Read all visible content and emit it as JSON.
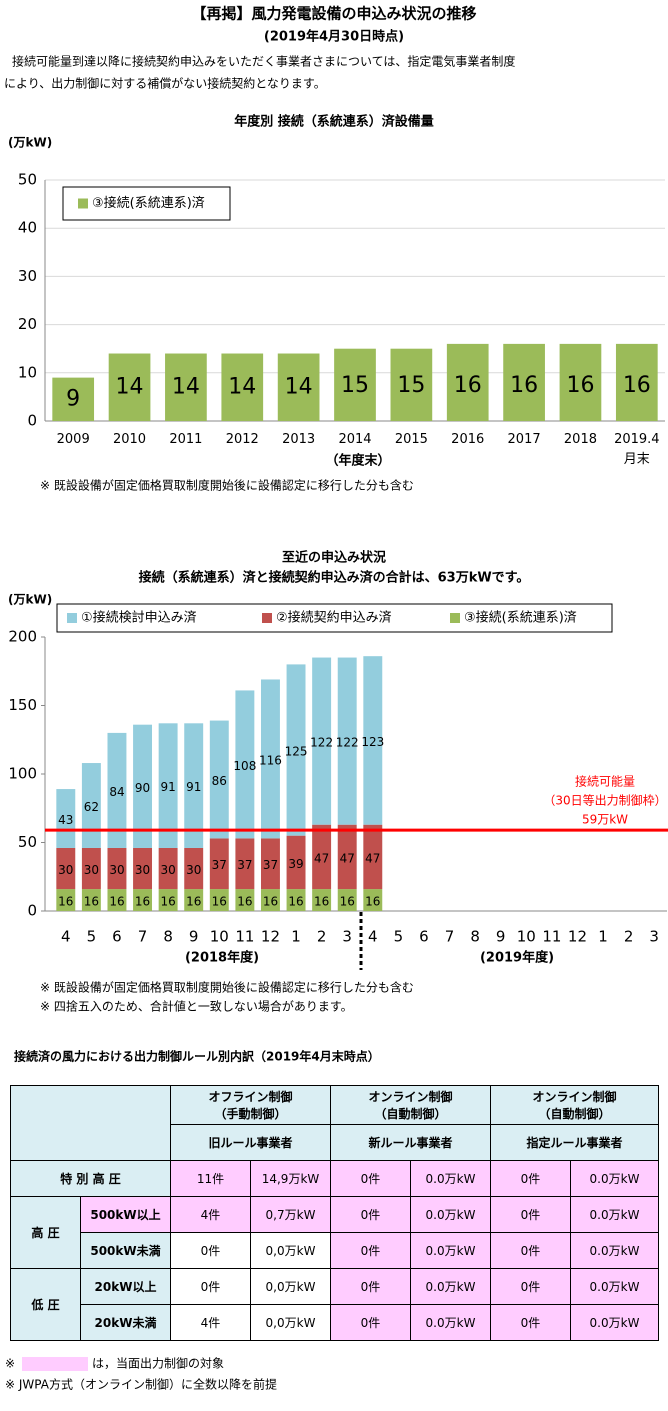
{
  "header": {
    "title": "【再掲】風力発電設備の申込み状況の推移",
    "date": "(2019年4月30日時点)",
    "note": [
      "接続可能量到達以降に接続契約申込みをいただく事業者さまについては、指定電気事業者制度",
      "により、出力制御に対する補償がない接続契約となります。"
    ]
  },
  "chart_data": [
    {
      "type": "bar",
      "title": "年度別  接続（系統連系）済設備量",
      "y_unit": "(万kW)",
      "x_label": "（年度末）",
      "categories": [
        "2009",
        "2010",
        "2011",
        "2012",
        "2013",
        "2014",
        "2015",
        "2016",
        "2017",
        "2018",
        "2019.4月末"
      ],
      "series": [
        {
          "name": "③接続(系統連系)済",
          "color": "#9bbb59",
          "values": [
            9,
            14,
            14,
            14,
            14,
            15,
            15,
            16,
            16,
            16,
            16
          ]
        }
      ],
      "ylim": [
        0,
        50
      ],
      "yticks": [
        0,
        10,
        20,
        30,
        40,
        50
      ],
      "grid": true,
      "legend": "top-left",
      "footnotes": [
        "※ 既設設備が固定価格買取制度開始後に設備認定に移行した分も含む"
      ]
    },
    {
      "type": "stacked_bar",
      "title": [
        "至近の申込み状況",
        "接続（系統連系）済と接続契約申込み済の合計は、63万kWです。"
      ],
      "y_unit": "(万kW)",
      "categories": [
        "4",
        "5",
        "6",
        "7",
        "8",
        "9",
        "10",
        "11",
        "12",
        "1",
        "2",
        "3",
        "4",
        "5",
        "6",
        "7",
        "8",
        "9",
        "10",
        "11",
        "12",
        "1",
        "2",
        "3"
      ],
      "category_groups": [
        "(2018年度)",
        "(2019年度)"
      ],
      "series": [
        {
          "name": "①接続検討申込み済",
          "color": "#93cddd",
          "values": [
            43,
            62,
            84,
            90,
            91,
            91,
            86,
            108,
            116,
            125,
            122,
            122,
            123,
            null,
            null,
            null,
            null,
            null,
            null,
            null,
            null,
            null,
            null,
            null
          ]
        },
        {
          "name": "②接続契約申込み済",
          "color": "#c0504d",
          "values": [
            30,
            30,
            30,
            30,
            30,
            30,
            37,
            37,
            37,
            39,
            47,
            47,
            47,
            null,
            null,
            null,
            null,
            null,
            null,
            null,
            null,
            null,
            null,
            null
          ]
        },
        {
          "name": "③接続(系統連系)済",
          "color": "#9bbb59",
          "values": [
            16,
            16,
            16,
            16,
            16,
            16,
            16,
            16,
            16,
            16,
            16,
            16,
            16,
            null,
            null,
            null,
            null,
            null,
            null,
            null,
            null,
            null,
            null,
            null
          ]
        }
      ],
      "ylim": [
        0,
        200
      ],
      "yticks": [
        0,
        50,
        100,
        150,
        200
      ],
      "grid": false,
      "legend": "top",
      "reference_line": {
        "value": 59,
        "color": "#ff0000",
        "label": [
          "接続可能量",
          "（30日等出力制御枠）",
          "59万kW"
        ]
      },
      "footnotes": [
        "※ 既設設備が固定価格買取制度開始後に設備認定に移行した分も含む",
        "※ 四捨五入のため、合計値と一致しない場合があります。"
      ]
    }
  ],
  "table": {
    "title": "接続済の風力における出力制御ルール別内訳（2019年4月末時点）",
    "columns": [
      {
        "name": "オフライン制御",
        "sub": "（手動制御）",
        "rule": "旧ルール事業者"
      },
      {
        "name": "オンライン制御",
        "sub": "（自動制御）",
        "rule": "新ルール事業者"
      },
      {
        "name": "オンライン制御",
        "sub": "（自動制御）",
        "rule": "指定ルール事業者"
      }
    ],
    "rows": [
      {
        "label": "特 別 高 圧",
        "cells": [
          "11件",
          "14,9万kW",
          "0件",
          "0.0万kW",
          "0件",
          "0.0万kW"
        ]
      },
      {
        "label": "高 圧",
        "subrows": [
          {
            "label": "500kW以上",
            "cells": [
              "4件",
              "0,7万kW",
              "0件",
              "0.0万kW",
              "0件",
              "0.0万kW"
            ]
          },
          {
            "label": "500kW未満",
            "cells": [
              "0件",
              "0,0万kW",
              "0件",
              "0.0万kW",
              "0件",
              "0.0万kW"
            ]
          }
        ]
      },
      {
        "label": "低 圧",
        "subrows": [
          {
            "label": "20kW以上",
            "cells": [
              "0件",
              "0,0万kW",
              "0件",
              "0.0万kW",
              "0件",
              "0.0万kW"
            ]
          },
          {
            "label": "20kW未満",
            "cells": [
              "4件",
              "0,0万kW",
              "0件",
              "0.0万kW",
              "0件",
              "0.0万kW"
            ]
          }
        ]
      }
    ]
  },
  "highlight_note": {
    "mark": "※",
    "text": "は，当面出力制御の対象"
  },
  "footnote": "※ JWPA方式（オンライン制御）に全数以降を前提"
}
